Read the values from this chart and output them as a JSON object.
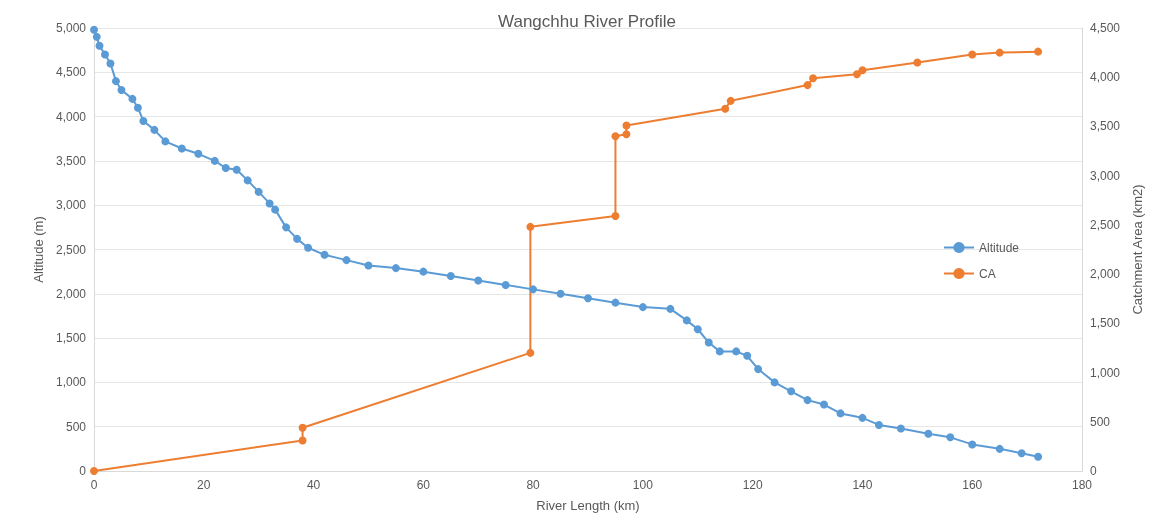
{
  "chart_data": {
    "type": "line",
    "title": "Wangchhu River Profile",
    "xlabel": "River Length (km)",
    "ylabel": "Altitude (m)",
    "y2label": "Catchment Area (km2)",
    "xlim": [
      0,
      180
    ],
    "xticks": [
      0,
      20,
      40,
      60,
      80,
      100,
      120,
      140,
      160,
      180
    ],
    "ylim": [
      0,
      5000
    ],
    "yticks": [
      {
        "value": 0,
        "label": "0"
      },
      {
        "value": 500,
        "label": "500"
      },
      {
        "value": 1000,
        "label": "1,000"
      },
      {
        "value": 1500,
        "label": "1,500"
      },
      {
        "value": 2000,
        "label": "2,000"
      },
      {
        "value": 2500,
        "label": "2,500"
      },
      {
        "value": 3000,
        "label": "3,000"
      },
      {
        "value": 3500,
        "label": "3,500"
      },
      {
        "value": 4000,
        "label": "4,000"
      },
      {
        "value": 4500,
        "label": "4,500"
      },
      {
        "value": 5000,
        "label": "5,000"
      }
    ],
    "y2lim": [
      0,
      4500
    ],
    "y2ticks": [
      {
        "value": 0,
        "label": "0"
      },
      {
        "value": 500,
        "label": "500"
      },
      {
        "value": 1000,
        "label": "1,000"
      },
      {
        "value": 1500,
        "label": "1,500"
      },
      {
        "value": 2000,
        "label": "2,000"
      },
      {
        "value": 2500,
        "label": "2,500"
      },
      {
        "value": 3000,
        "label": "3,000"
      },
      {
        "value": 3500,
        "label": "3,500"
      },
      {
        "value": 4000,
        "label": "4,000"
      },
      {
        "value": 4500,
        "label": "4,500"
      }
    ],
    "grid": "y",
    "legend": "right",
    "marker": "circle",
    "line_style": "solid",
    "series": [
      {
        "name": "Altitude",
        "color": "#5b9bd5",
        "x": [
          0,
          0.5,
          1,
          2,
          3,
          4,
          5,
          7,
          8,
          9,
          11,
          13,
          16,
          19,
          22,
          24,
          26,
          28,
          30,
          32,
          33,
          35,
          37,
          39,
          42,
          46,
          50,
          55,
          60,
          65,
          70,
          75,
          80,
          85,
          90,
          95,
          100,
          105,
          108,
          110,
          112,
          114,
          117,
          119,
          121,
          124,
          127,
          130,
          133,
          136,
          140,
          143,
          147,
          152,
          156,
          160,
          165,
          169,
          172
        ],
        "values": [
          4980,
          4900,
          4800,
          4700,
          4600,
          4400,
          4300,
          4200,
          4100,
          3950,
          3850,
          3720,
          3640,
          3580,
          3500,
          3420,
          3400,
          3280,
          3150,
          3020,
          2950,
          2750,
          2620,
          2520,
          2440,
          2380,
          2320,
          2290,
          2250,
          2200,
          2150,
          2100,
          2050,
          2000,
          1950,
          1900,
          1850,
          1830,
          1700,
          1600,
          1450,
          1350,
          1350,
          1300,
          1150,
          1000,
          900,
          800,
          750,
          650,
          600,
          520,
          480,
          420,
          380,
          300,
          250,
          200,
          160
        ]
      },
      {
        "name": "CA",
        "color": "#ed7d31",
        "axis": "y2",
        "x": [
          0,
          38,
          38,
          79.5,
          79.5,
          95,
          95,
          97,
          97,
          115,
          116,
          130,
          131,
          139,
          140,
          150,
          160,
          165,
          172
        ],
        "values": [
          0,
          310,
          440,
          1200,
          2480,
          2590,
          3400,
          3420,
          3510,
          3680,
          3760,
          3920,
          3990,
          4030,
          4070,
          4150,
          4230,
          4250,
          4260
        ]
      }
    ]
  }
}
